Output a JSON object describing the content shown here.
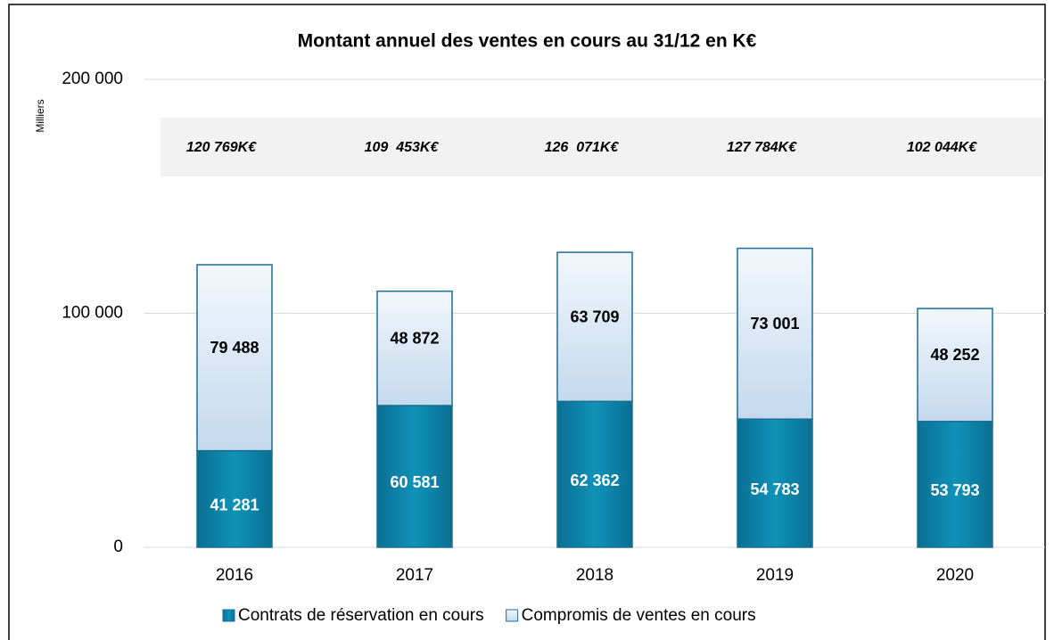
{
  "chart_data": {
    "type": "stacked_bar",
    "title": "Montant annuel des ventes en cours au 31/12 en K€",
    "y_axis_label": "Milliers",
    "categories": [
      "2016",
      "2017",
      "2018",
      "2019",
      "2020"
    ],
    "series": [
      {
        "name": "Contrats de réservation en cours",
        "color": "#0e86ab",
        "values": [
          41281,
          60581,
          62362,
          54783,
          53793
        ],
        "value_labels": [
          "41 281",
          "60 581",
          "62 362",
          "54 783",
          "53 793"
        ]
      },
      {
        "name": "Compromis de ventes en cours",
        "color": "#d6e6f4",
        "values": [
          79488,
          48872,
          63709,
          73001,
          48252
        ],
        "value_labels": [
          "79 488",
          "48 872",
          "63 709",
          "73 001",
          "48 252"
        ]
      }
    ],
    "annotations": [
      "120 769K€",
      "109  453K€",
      "126  071K€",
      "127 784K€",
      "102 044K€"
    ],
    "ylim": [
      0,
      200000
    ],
    "yticks": [
      0,
      {
        "value": 100000,
        "label": "100 000"
      },
      {
        "value": 200000,
        "label": "200 000"
      }
    ],
    "grid": true,
    "legend": "bottom"
  }
}
